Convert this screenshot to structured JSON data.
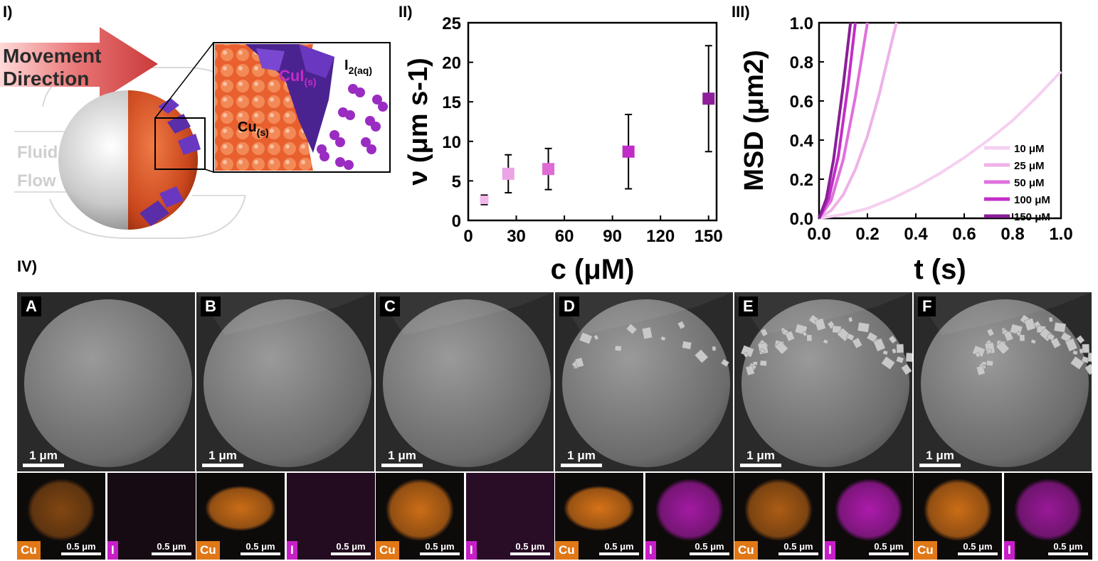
{
  "panel_labels": {
    "p1": "I)",
    "p2": "II)",
    "p3": "III)",
    "p4": "IV)"
  },
  "schematic": {
    "arrow_text_line1": "Movement",
    "arrow_text_line2": "Direction",
    "fluid_line1": "Fluid",
    "fluid_line2": "Flow",
    "cui_main": "CuI",
    "cui_sub": "(s)",
    "cu_main": "Cu",
    "cu_sub": "(s)",
    "i2_main": "I",
    "i2_sub": "2(aq)",
    "colors": {
      "arrow": "#d64a4a",
      "copper": "#d9582c",
      "crystal": "#5b2ea6",
      "iodine": "#a830c8"
    }
  },
  "chart_data": [
    {
      "type": "scatter",
      "title": "",
      "xlabel": "c (μM)",
      "ylabel": "ν (μm s-1)",
      "xlim": [
        0,
        155
      ],
      "ylim": [
        0,
        25
      ],
      "xticks": [
        0,
        30,
        60,
        90,
        120,
        150
      ],
      "yticks": [
        0,
        5,
        10,
        15,
        20,
        25
      ],
      "grid": false,
      "points": [
        {
          "x": 10,
          "y": 2.6,
          "err": 0.6,
          "color": "#f2b8ec"
        },
        {
          "x": 25,
          "y": 5.9,
          "err": 2.4,
          "color": "#eca4e4"
        },
        {
          "x": 50,
          "y": 6.5,
          "err": 2.6,
          "color": "#de6ad6"
        },
        {
          "x": 100,
          "y": 8.7,
          "err": 4.7,
          "color": "#c02cc8"
        },
        {
          "x": 150,
          "y": 15.4,
          "err": 6.7,
          "color": "#8e1e9c"
        }
      ]
    },
    {
      "type": "line",
      "title": "",
      "xlabel": "t (s)",
      "ylabel": "MSD (μm2)",
      "xlim": [
        0,
        1.0
      ],
      "ylim": [
        0,
        1.0
      ],
      "xticks": [
        0.0,
        0.2,
        0.4,
        0.6,
        0.8,
        1.0
      ],
      "yticks": [
        0.0,
        0.2,
        0.4,
        0.6,
        0.8,
        1.0
      ],
      "legend_position": "bottom-right",
      "series": [
        {
          "name": "10 μM",
          "color": "#f5d0f0",
          "x": [
            0,
            0.1,
            0.2,
            0.3,
            0.4,
            0.5,
            0.6,
            0.7,
            0.8,
            0.9,
            1.0
          ],
          "y": [
            0,
            0.02,
            0.05,
            0.1,
            0.16,
            0.23,
            0.31,
            0.4,
            0.5,
            0.62,
            0.75
          ]
        },
        {
          "name": "25 μM",
          "color": "#eeb2e8",
          "x": [
            0,
            0.05,
            0.1,
            0.15,
            0.2,
            0.25,
            0.3,
            0.32
          ],
          "y": [
            0,
            0.04,
            0.12,
            0.25,
            0.42,
            0.64,
            0.9,
            1.0
          ]
        },
        {
          "name": "50 μM",
          "color": "#e070dc",
          "x": [
            0,
            0.05,
            0.1,
            0.15,
            0.2
          ],
          "y": [
            0,
            0.09,
            0.3,
            0.62,
            1.0
          ]
        },
        {
          "name": "100 μM",
          "color": "#c22ec6",
          "x": [
            0,
            0.04,
            0.08,
            0.12,
            0.15
          ],
          "y": [
            0,
            0.1,
            0.32,
            0.68,
            1.0
          ]
        },
        {
          "name": "150 μM",
          "color": "#8a1e98",
          "x": [
            0,
            0.03,
            0.06,
            0.1,
            0.13
          ],
          "y": [
            0,
            0.1,
            0.3,
            0.68,
            1.0
          ]
        }
      ]
    }
  ],
  "sem": {
    "tiles": [
      {
        "letter": "A",
        "scale": "1 μm"
      },
      {
        "letter": "B",
        "scale": "1 μm"
      },
      {
        "letter": "C",
        "scale": "1 μm"
      },
      {
        "letter": "D",
        "scale": "1 μm"
      },
      {
        "letter": "E",
        "scale": "1 μm"
      },
      {
        "letter": "F",
        "scale": "1 μm"
      }
    ]
  },
  "eds": {
    "cu_label": "Cu",
    "i_label": "I",
    "scale": "0.5 μm",
    "cu_color": "#e07818",
    "i_color": "#c81ec8"
  }
}
